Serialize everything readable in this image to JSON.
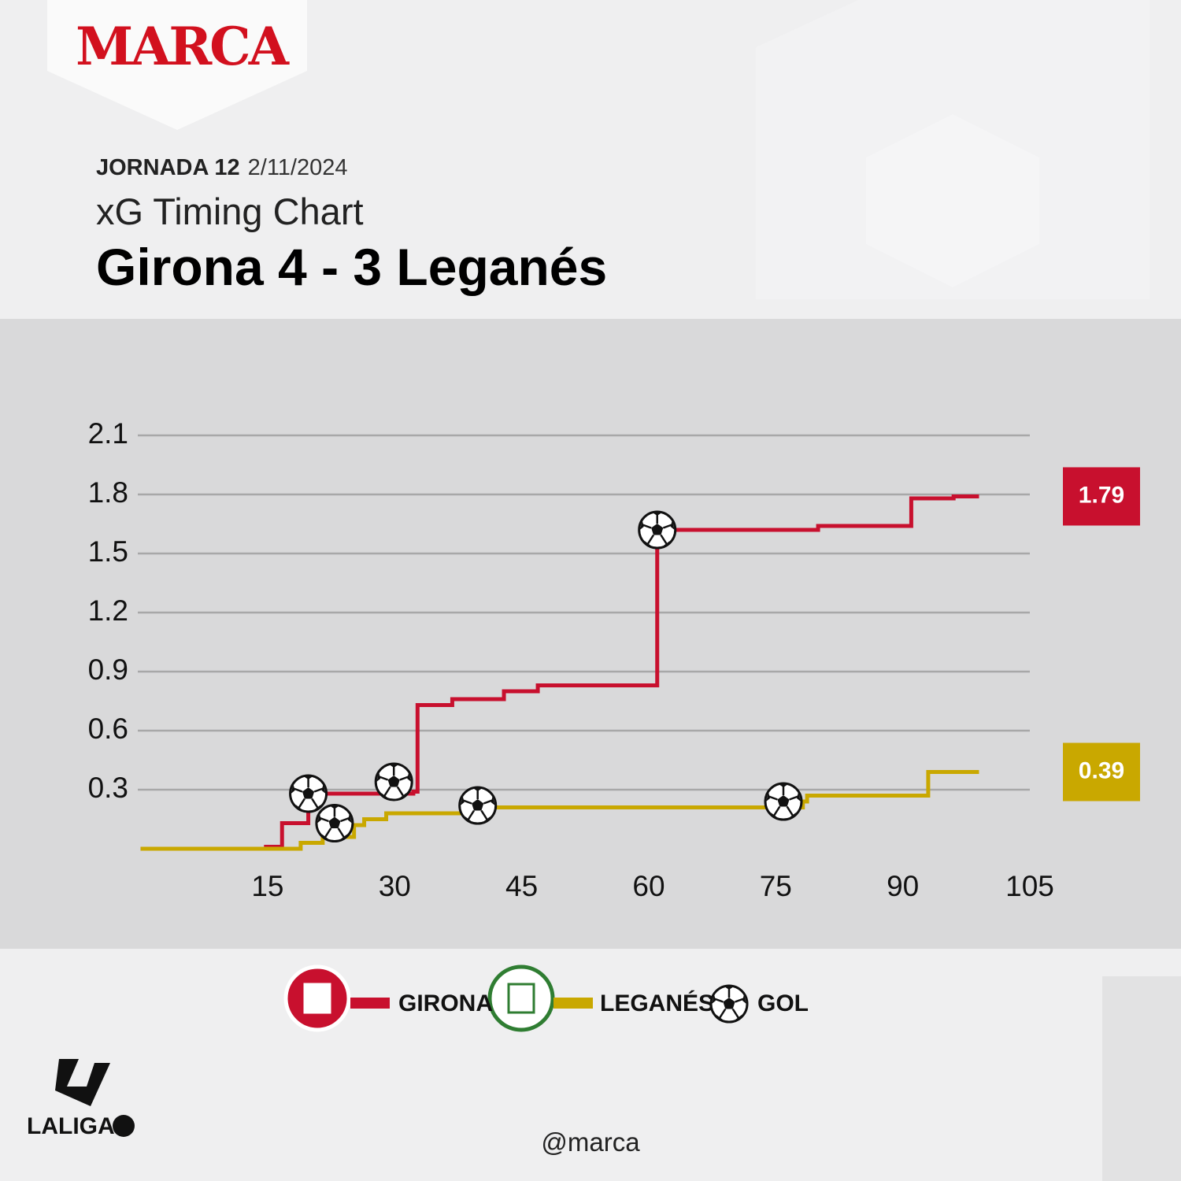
{
  "brand": "MARCA",
  "round": "JORNADA 12",
  "date": "2/11/2024",
  "subtitle": "xG Timing Chart",
  "footer_handle": "@marca",
  "league": "LALIGA",
  "chart_data": {
    "type": "step",
    "title": "Girona 4 - 3 Leganés",
    "xlim": [
      0,
      105
    ],
    "xticks": [
      15,
      30,
      45,
      60,
      75,
      90,
      105
    ],
    "ylim": [
      0,
      2.1
    ],
    "yticks": [
      0.3,
      0.6,
      0.9,
      1.2,
      1.5,
      1.8,
      2.1
    ],
    "grid": true,
    "series": [
      {
        "name": "GIRONA",
        "color": "#c8102e",
        "x": [
          0,
          14.8,
          16.7,
          19.8,
          32.2,
          32.7,
          36.8,
          42.9,
          46.9,
          61,
          80,
          91,
          96,
          99
        ],
        "values": [
          0,
          0.01,
          0.13,
          0.28,
          0.29,
          0.73,
          0.76,
          0.8,
          0.83,
          1.62,
          1.64,
          1.78,
          1.79,
          1.79
        ]
      },
      {
        "name": "LEGANÉS",
        "color": "#c9a800",
        "x": [
          0,
          18.9,
          21.5,
          25.2,
          26.4,
          29,
          39.6,
          78.2,
          78.7,
          93,
          99
        ],
        "values": [
          0,
          0.03,
          0.06,
          0.12,
          0.15,
          0.18,
          0.21,
          0.24,
          0.27,
          0.39,
          0.39
        ]
      }
    ],
    "goals": {
      "name": "GOL",
      "x": [
        19.8,
        29.9,
        61,
        22.9,
        39.8,
        75.9
      ],
      "values": [
        0.28,
        0.34,
        1.62,
        0.13,
        0.22,
        0.24
      ]
    }
  }
}
